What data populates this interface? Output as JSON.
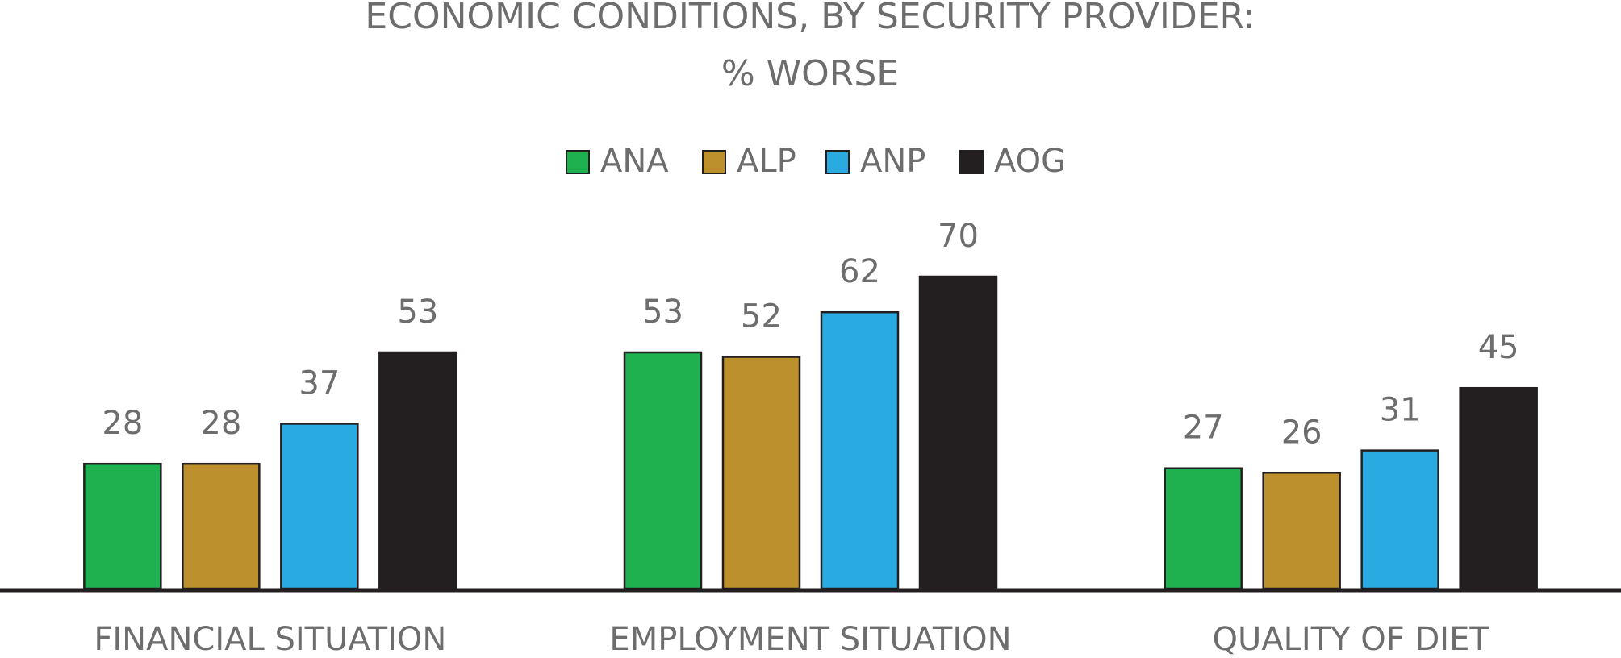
{
  "chart_data": {
    "type": "bar",
    "title": "ECONOMIC CONDITIONS, BY SECURITY PROVIDER:",
    "subtitle": "% WORSE",
    "categories": [
      "FINANCIAL SITUATION",
      "EMPLOYMENT SITUATION",
      "QUALITY OF DIET"
    ],
    "series": [
      {
        "name": "ANA",
        "color": "#1fb04f",
        "values": [
          28,
          53,
          27
        ]
      },
      {
        "name": "ALP",
        "color": "#bd902e",
        "values": [
          28,
          52,
          26
        ]
      },
      {
        "name": "ANP",
        "color": "#29abe2",
        "values": [
          37,
          62,
          31
        ]
      },
      {
        "name": "AOG",
        "color": "#231f20",
        "values": [
          53,
          70,
          45
        ]
      }
    ],
    "legend": "top"
  }
}
